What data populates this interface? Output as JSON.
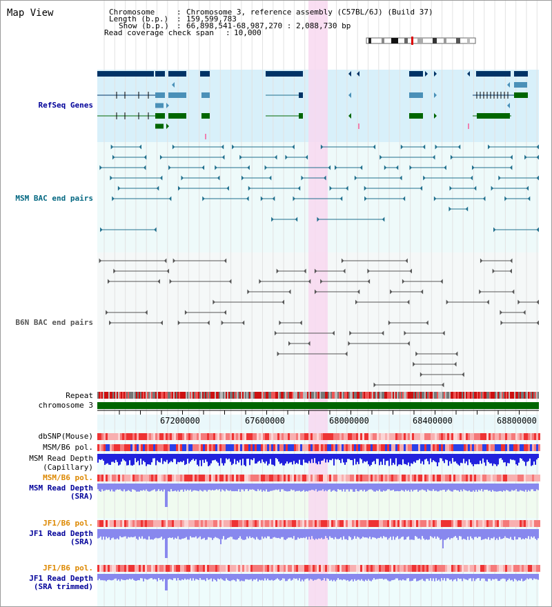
{
  "page": {
    "title": "Map View"
  },
  "header": {
    "chromosome_key": "Chromosome",
    "chromosome_value": "Chromosome 3, reference assembly (C57BL/6J) (Build 37)",
    "length_key": "Length (b.p.)",
    "length_value": "159,599,783",
    "show_key": "Show (b.p.)",
    "show_value": "66,898,541-68,987,270 : 2,088,730 bp",
    "read_cov_key": "Read coverage check span",
    "read_cov_value": "10,000"
  },
  "tracks": {
    "refseq": "RefSeq Genes",
    "msm_bac": "MSM BAC end pairs",
    "b6n_bac": "B6N BAC end pairs",
    "repeat": "Repeat",
    "chromosome": "chromosome 3",
    "dbsnp": "dbSNP(Mouse)",
    "msm_b6_pol": "MSM/B6 pol.",
    "msm_read_depth": "MSM Read Depth",
    "capillary": "(Capillary)",
    "msm_b6_pol2": "MSM/B6 pol.",
    "msm_read_depth_sra": "MSM Read Depth",
    "sra": "(SRA)",
    "jf1_b6_pol": "JF1/B6 pol.",
    "jf1_read_depth": "JF1 Read Depth",
    "sra2": "(SRA)",
    "jf1_b6_pol2": "JF1/B6 pol.",
    "jf1_read_depth2": "JF1 Read Depth",
    "sra_trimmed": "(SRA trimmed)"
  },
  "axis": {
    "ticks": [
      "67200000",
      "67600000",
      "68000000",
      "68400000",
      "68800000"
    ]
  },
  "colors": {
    "refseq_bg": "#d8f0fa",
    "bac_bg": "#eefafa",
    "b6n_bg": "#f5f8f8",
    "highlight": "#f8d8f0",
    "gene_dark": "#003366",
    "gene_mid": "#4a90b8",
    "gene_green": "#006600",
    "msm_line": "#1e6e8c",
    "b6n_line": "#555555",
    "chrom_green": "#006600",
    "depth_blue": "#2222dd",
    "depth_light": "#8888ee",
    "label_blue": "#000099",
    "label_teal": "#006680",
    "label_orange": "#dd8800"
  }
}
